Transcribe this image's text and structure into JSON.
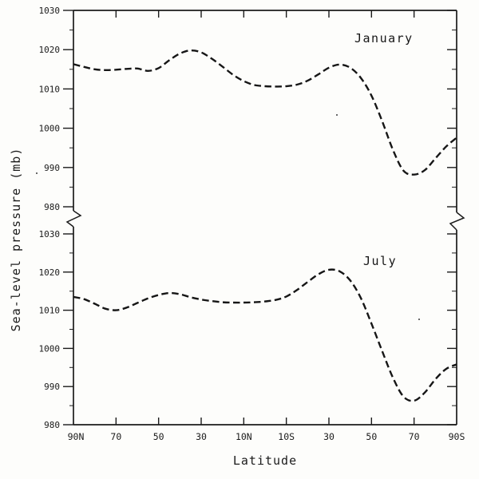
{
  "figure": {
    "ylabel": "Sea-level pressure (mb)",
    "xlabel": "Latitude",
    "panel_labels": {
      "top": "January",
      "bottom": "July"
    },
    "ink_color": "#1b1b1b",
    "paper_color": "#fdfdfb"
  },
  "chart_data": [
    {
      "type": "line",
      "title": "January",
      "xlabel": "Latitude",
      "ylabel": "Sea-level pressure (mb)",
      "x": [
        90,
        85,
        80,
        75,
        70,
        65,
        60,
        55,
        50,
        45,
        40,
        35,
        30,
        25,
        20,
        15,
        10,
        5,
        0,
        -5,
        -10,
        -15,
        -20,
        -25,
        -30,
        -35,
        -40,
        -45,
        -50,
        -55,
        -60,
        -65,
        -70,
        -75,
        -80,
        -85,
        -90
      ],
      "x_unit": "degrees latitude (positive = N, negative = S)",
      "xticks": [
        "90N",
        "70",
        "50",
        "30",
        "10N",
        "10S",
        "30",
        "50",
        "70",
        "90S"
      ],
      "yticks": [
        1030,
        1020,
        1010,
        1000,
        990,
        980
      ],
      "ylim": [
        980,
        1030
      ],
      "grid": false,
      "legend": "none",
      "series": [
        {
          "name": "January",
          "style": "dashed",
          "values": [
            1016.3,
            1015.6,
            1015.0,
            1014.8,
            1014.9,
            1015.1,
            1015.2,
            1014.6,
            1015.3,
            1017.3,
            1019.0,
            1019.8,
            1019.3,
            1017.7,
            1015.7,
            1013.6,
            1012.0,
            1011.0,
            1010.7,
            1010.6,
            1010.7,
            1011.1,
            1012.1,
            1013.7,
            1015.4,
            1016.2,
            1015.4,
            1012.8,
            1008.3,
            1001.8,
            994.6,
            989.2,
            988.2,
            989.3,
            992.3,
            995.3,
            997.6
          ]
        }
      ]
    },
    {
      "type": "line",
      "title": "July",
      "xlabel": "Latitude",
      "ylabel": "Sea-level pressure (mb)",
      "x": [
        90,
        85,
        80,
        75,
        70,
        65,
        60,
        55,
        50,
        45,
        40,
        35,
        30,
        25,
        20,
        15,
        10,
        5,
        0,
        -5,
        -10,
        -15,
        -20,
        -25,
        -30,
        -35,
        -40,
        -45,
        -50,
        -55,
        -60,
        -65,
        -70,
        -75,
        -80,
        -85,
        -90
      ],
      "x_unit": "degrees latitude (positive = N, negative = S)",
      "xticks": [
        "90N",
        "70",
        "50",
        "30",
        "10N",
        "10S",
        "30",
        "50",
        "70",
        "90S"
      ],
      "yticks": [
        1030,
        1020,
        1010,
        1000,
        990,
        980
      ],
      "ylim": [
        980,
        1030
      ],
      "grid": false,
      "legend": "none",
      "series": [
        {
          "name": "July",
          "style": "dashed",
          "values": [
            1013.5,
            1012.9,
            1011.7,
            1010.4,
            1010.0,
            1010.7,
            1011.9,
            1013.1,
            1014.0,
            1014.5,
            1014.2,
            1013.4,
            1012.8,
            1012.4,
            1012.1,
            1012.0,
            1012.0,
            1012.1,
            1012.3,
            1012.7,
            1013.6,
            1015.3,
            1017.4,
            1019.4,
            1020.6,
            1020.2,
            1017.8,
            1013.2,
            1006.5,
            999.3,
            992.4,
            987.4,
            986.3,
            988.4,
            991.9,
            994.6,
            995.8
          ]
        }
      ]
    }
  ]
}
